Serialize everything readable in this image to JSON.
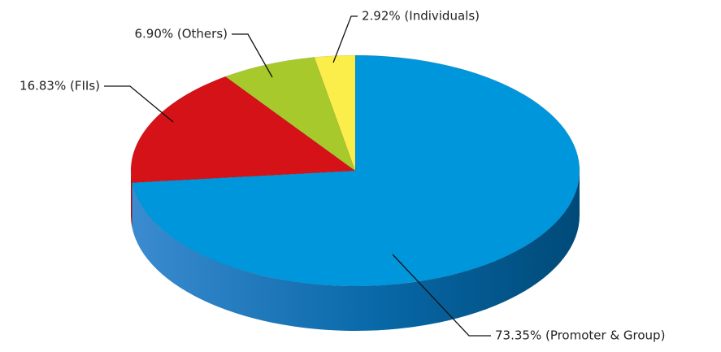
{
  "chart_data": {
    "type": "pie",
    "values": [
      73.35,
      16.83,
      6.9,
      2.92
    ],
    "value_labels": [
      "73.35% (Promoter & Group)",
      "16.83% (FIIs)",
      "6.90% (Others)",
      "2.92% (Individuals)"
    ],
    "colors": [
      "#0096db",
      "#d41217",
      "#a8c92b",
      "#fcee4a"
    ]
  }
}
